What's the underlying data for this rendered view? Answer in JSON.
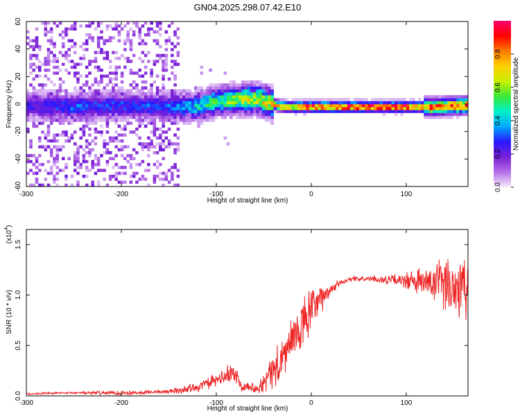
{
  "title": "GN04.2025.298.07.42.E10",
  "chart_data": [
    {
      "type": "heatmap",
      "xlabel": "Height of straight line (km)",
      "ylabel": "Frequency (Hz)",
      "xlim": [
        -300,
        165
      ],
      "ylim": [
        -60,
        60
      ],
      "x_ticks": [
        -300,
        -200,
        -100,
        0,
        100
      ],
      "y_ticks": [
        -60,
        -40,
        -20,
        0,
        20,
        40,
        60
      ],
      "x_tick_labels": [
        "-300",
        "-200",
        "-100",
        "0",
        "100"
      ],
      "y_tick_labels": [
        "-60",
        "-40",
        "-20",
        "0",
        "20",
        "40",
        "60"
      ],
      "colorbar": {
        "label": "Normalized spectral amplitude",
        "range": [
          0,
          1
        ],
        "ticks": [
          0.0,
          0.2,
          0.4,
          0.6,
          0.8
        ],
        "tick_labels": [
          "0.0",
          "0.2",
          "0.4",
          "0.6",
          "0.8"
        ],
        "colors": [
          "#f6ecfb",
          "#b46ee8",
          "#7a1fd6",
          "#2818ff",
          "#00a8ff",
          "#00f0c8",
          "#3ae83a",
          "#c8f000",
          "#ffd000",
          "#ff7a00",
          "#ff0000",
          "#ff0070"
        ]
      },
      "ridge": {
        "x": [
          -300,
          -250,
          -200,
          -150,
          -120,
          -100,
          -80,
          -60,
          -45,
          -35,
          -25,
          -10,
          0,
          50,
          100,
          130,
          165
        ],
        "frequency": [
          -1,
          -2,
          -1,
          -2,
          -2,
          2,
          3,
          4,
          1,
          -1,
          -2,
          -2,
          -2,
          -2,
          -2,
          -2,
          -1
        ],
        "peak_amplitude": [
          0.22,
          0.3,
          0.28,
          0.3,
          0.42,
          0.5,
          0.58,
          0.62,
          0.7,
          0.8,
          0.85,
          0.88,
          0.9,
          0.9,
          0.9,
          0.8,
          0.85
        ]
      },
      "noise_floor": {
        "x": [
          -300,
          -140
        ],
        "frequency_range": [
          -60,
          60
        ],
        "amplitude": 0.08
      }
    },
    {
      "type": "line",
      "xlabel": "Height of straight line (km)",
      "ylabel": "SNR (10 * v/v)",
      "y_multiplier_label": "(x10",
      "y_multiplier_exponent": "4",
      "xlim": [
        -300,
        165
      ],
      "ylim": [
        0,
        1.65
      ],
      "x_ticks": [
        -300,
        -200,
        -100,
        0,
        100
      ],
      "y_ticks": [
        0.0,
        0.5,
        1.0,
        1.5
      ],
      "x_tick_labels": [
        "-300",
        "-200",
        "-100",
        "0",
        "100"
      ],
      "y_tick_labels": [
        "0.0",
        "0.5",
        "1.0",
        "1.5"
      ],
      "series": [
        {
          "color": "#ee2222",
          "envelope_x": [
            -300,
            -250,
            -200,
            -160,
            -140,
            -120,
            -100,
            -90,
            -80,
            -75,
            -70,
            -60,
            -50,
            -45,
            -40,
            -35,
            -30,
            -25,
            -20,
            -15,
            -10,
            -5,
            0,
            5,
            10,
            15,
            20,
            30,
            40,
            60,
            80,
            100,
            120,
            140,
            165
          ],
          "mean": [
            0.02,
            0.03,
            0.03,
            0.04,
            0.05,
            0.09,
            0.15,
            0.2,
            0.22,
            0.12,
            0.1,
            0.08,
            0.12,
            0.2,
            0.25,
            0.3,
            0.38,
            0.46,
            0.55,
            0.62,
            0.68,
            0.78,
            0.85,
            0.9,
            0.95,
            1.0,
            1.05,
            1.12,
            1.16,
            1.16,
            1.15,
            1.14,
            1.12,
            1.1,
            1.1
          ],
          "amplitude": [
            0.01,
            0.015,
            0.03,
            0.02,
            0.04,
            0.06,
            0.08,
            0.1,
            0.16,
            0.07,
            0.06,
            0.06,
            0.12,
            0.16,
            0.22,
            0.3,
            0.25,
            0.3,
            0.3,
            0.25,
            0.3,
            0.35,
            0.25,
            0.25,
            0.18,
            0.1,
            0.07,
            0.05,
            0.03,
            0.03,
            0.05,
            0.1,
            0.2,
            0.3,
            0.5
          ]
        }
      ]
    }
  ]
}
